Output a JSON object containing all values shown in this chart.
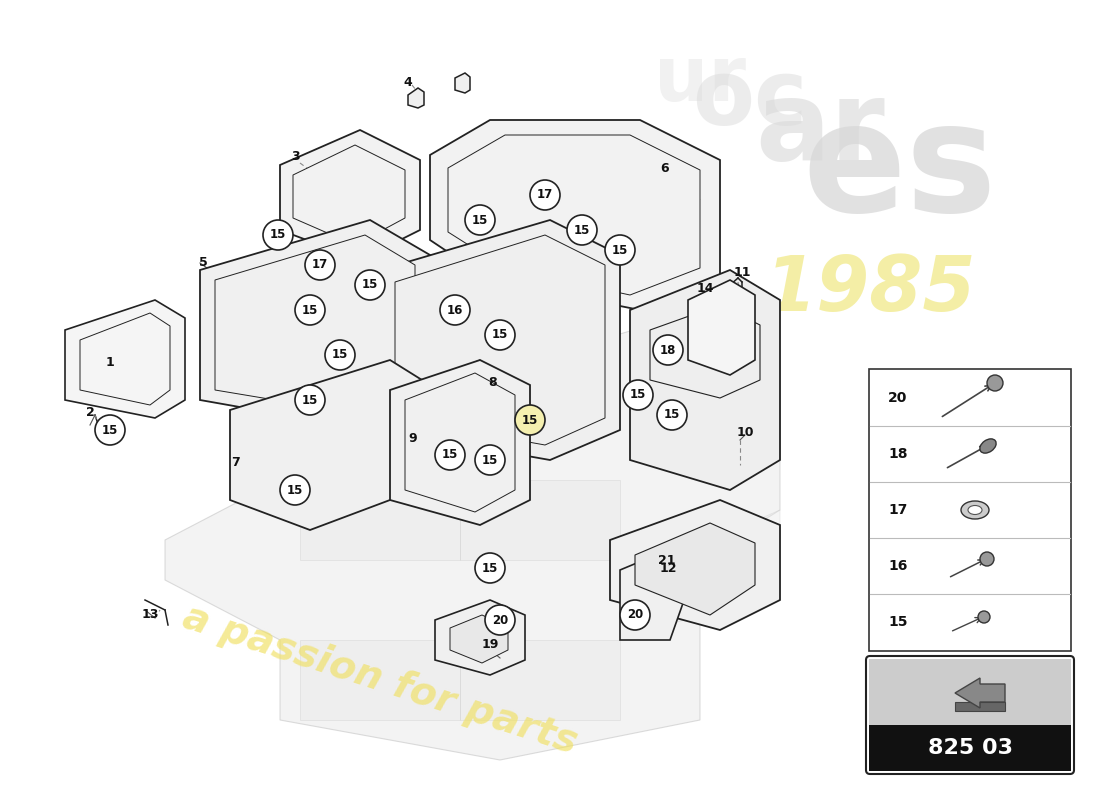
{
  "bg_color": "#ffffff",
  "part_number_box": "825 03",
  "legend_items": [
    {
      "num": "20"
    },
    {
      "num": "18"
    },
    {
      "num": "17"
    },
    {
      "num": "16"
    },
    {
      "num": "15"
    }
  ],
  "watermark_yellow": "#f5f0b0",
  "watermark_gray": "#d8d8d8",
  "line_color": "#222222",
  "dashed_color": "#888888"
}
